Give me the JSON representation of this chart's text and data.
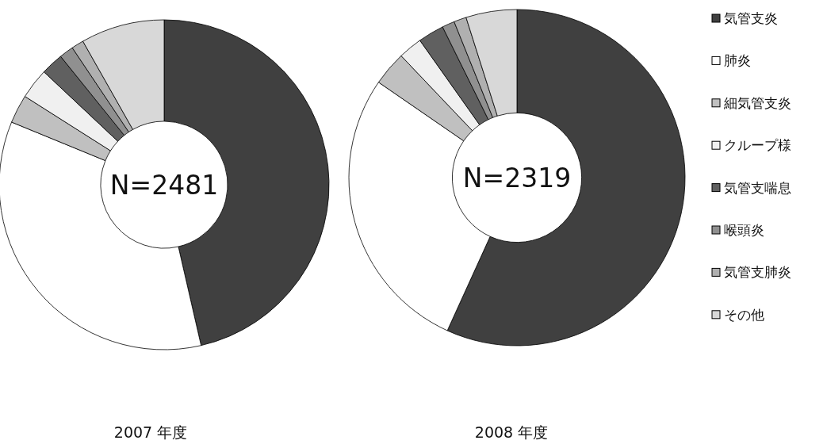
{
  "chart_data": [
    {
      "type": "donut",
      "title": "2007 年度",
      "annotations": [
        "N=2481"
      ],
      "categories": [
        null,
        null,
        null,
        null,
        null,
        null,
        null,
        null
      ],
      "values": [
        46.4,
        34.8,
        2.8,
        3.0,
        2.2,
        1.4,
        1.2,
        8.2
      ],
      "colors": [
        "#404040",
        "#ffffff",
        "#c0c0c0",
        "#f0f0f0",
        "#606060",
        "#909090",
        "#b0b0b0",
        "#d8d8d8"
      ],
      "legend": false
    },
    {
      "type": "donut",
      "title": "2008 年度",
      "annotations": [
        "N=2319"
      ],
      "categories": [
        "気管支炎",
        "肺炎",
        "細気管支炎",
        "クループ様",
        "気管支喘息",
        "喉頭炎",
        "気管支肺炎",
        "その他"
      ],
      "values": [
        56.8,
        27.8,
        3.3,
        2.3,
        2.5,
        1.2,
        1.2,
        4.9
      ],
      "colors": [
        "#404040",
        "#ffffff",
        "#c0c0c0",
        "#f0f0f0",
        "#606060",
        "#909090",
        "#b0b0b0",
        "#d8d8d8"
      ],
      "legend": "right"
    }
  ]
}
